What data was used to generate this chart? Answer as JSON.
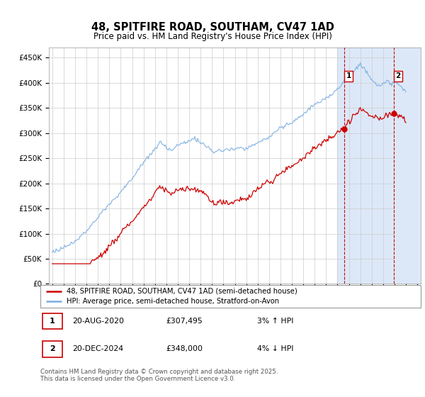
{
  "title": "48, SPITFIRE ROAD, SOUTHAM, CV47 1AD",
  "subtitle": "Price paid vs. HM Land Registry's House Price Index (HPI)",
  "legend_line1": "48, SPITFIRE ROAD, SOUTHAM, CV47 1AD (semi-detached house)",
  "legend_line2": "HPI: Average price, semi-detached house, Stratford-on-Avon",
  "transaction1_date": "20-AUG-2020",
  "transaction1_price": "£307,495",
  "transaction1_hpi": "3% ↑ HPI",
  "transaction2_date": "20-DEC-2024",
  "transaction2_price": "£348,000",
  "transaction2_hpi": "4% ↓ HPI",
  "footer": "Contains HM Land Registry data © Crown copyright and database right 2025.\nThis data is licensed under the Open Government Licence v3.0.",
  "red_color": "#cc0000",
  "blue_color": "#7aade0",
  "shaded_color": "#dce8f8",
  "ylim": [
    0,
    470000
  ],
  "yticks": [
    0,
    50000,
    100000,
    150000,
    200000,
    250000,
    300000,
    350000,
    400000,
    450000
  ],
  "xlim_left": 1994.7,
  "xlim_right": 2027.3,
  "transaction1_year": 2020.6,
  "transaction2_year": 2024.95,
  "shaded_start": 2020.0,
  "shaded_end": 2027.3,
  "hatch_start": 2025.0,
  "n_points": 373,
  "start_year": 1995.0,
  "end_year": 2026.0,
  "noise_seed": 7
}
